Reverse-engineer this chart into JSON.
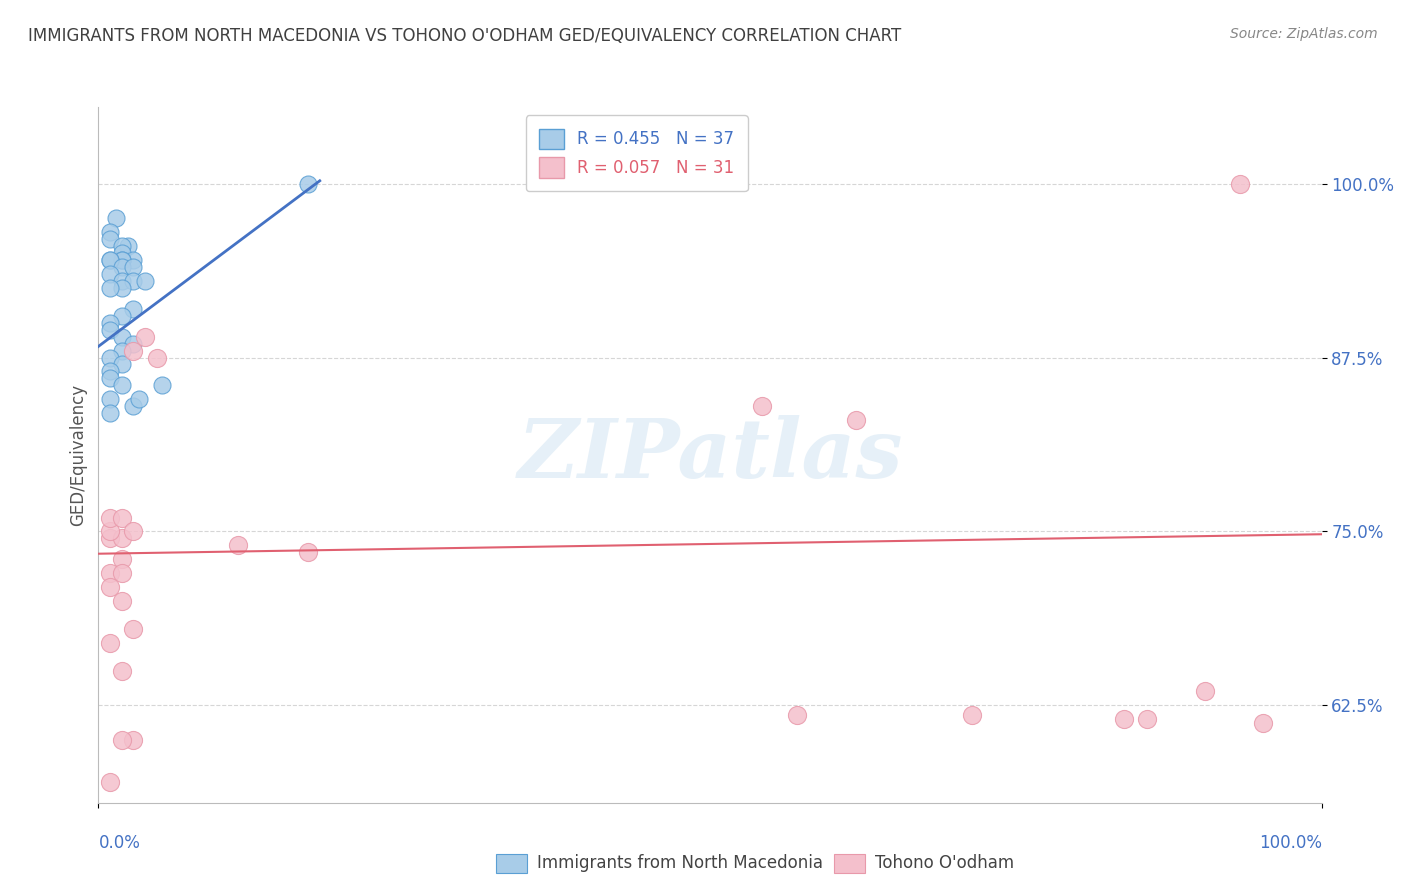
{
  "title": "IMMIGRANTS FROM NORTH MACEDONIA VS TOHONO O'ODHAM GED/EQUIVALENCY CORRELATION CHART",
  "source": "Source: ZipAtlas.com",
  "ylabel": "GED/Equivalency",
  "yticks": [
    0.625,
    0.75,
    0.875,
    1.0
  ],
  "ytick_labels": [
    "62.5%",
    "75.0%",
    "87.5%",
    "100.0%"
  ],
  "xlim": [
    0.0,
    0.105
  ],
  "ylim": [
    0.555,
    1.055
  ],
  "legend_r1": "R = 0.455",
  "legend_n1": "N = 37",
  "legend_r2": "R = 0.057",
  "legend_n2": "N = 31",
  "blue_scatter_x": [
    0.0015,
    0.0025,
    0.001,
    0.001,
    0.002,
    0.002,
    0.003,
    0.002,
    0.002,
    0.001,
    0.001,
    0.002,
    0.003,
    0.001,
    0.002,
    0.003,
    0.004,
    0.002,
    0.001,
    0.003,
    0.002,
    0.001,
    0.001,
    0.002,
    0.003,
    0.002,
    0.001,
    0.002,
    0.001,
    0.001,
    0.002,
    0.001,
    0.003,
    0.001,
    0.0055,
    0.0035,
    0.018
  ],
  "blue_scatter_y": [
    0.975,
    0.955,
    0.965,
    0.96,
    0.955,
    0.95,
    0.945,
    0.945,
    0.945,
    0.945,
    0.945,
    0.94,
    0.94,
    0.935,
    0.93,
    0.93,
    0.93,
    0.925,
    0.925,
    0.91,
    0.905,
    0.9,
    0.895,
    0.89,
    0.885,
    0.88,
    0.875,
    0.87,
    0.865,
    0.86,
    0.855,
    0.845,
    0.84,
    0.835,
    0.855,
    0.845,
    1.0
  ],
  "pink_scatter_x": [
    0.001,
    0.002,
    0.001,
    0.002,
    0.001,
    0.002,
    0.001,
    0.002,
    0.003,
    0.001,
    0.002,
    0.003,
    0.003,
    0.004,
    0.005,
    0.001,
    0.002,
    0.003,
    0.001,
    0.002,
    0.018,
    0.012,
    0.098,
    0.065,
    0.057,
    0.095,
    0.09,
    0.075,
    0.06,
    0.088,
    0.1
  ],
  "pink_scatter_y": [
    0.745,
    0.745,
    0.75,
    0.73,
    0.72,
    0.72,
    0.71,
    0.7,
    0.68,
    0.67,
    0.65,
    0.6,
    0.88,
    0.89,
    0.875,
    0.76,
    0.76,
    0.75,
    0.57,
    0.6,
    0.735,
    0.74,
    1.0,
    0.83,
    0.84,
    0.635,
    0.615,
    0.618,
    0.618,
    0.615,
    0.612
  ],
  "blue_line_x": [
    0.0,
    0.019
  ],
  "blue_line_y": [
    0.883,
    1.002
  ],
  "pink_line_x": [
    0.0,
    0.105
  ],
  "pink_line_y": [
    0.734,
    0.748
  ],
  "watermark": "ZIPatlas",
  "background_color": "#ffffff",
  "blue_color": "#a8cce8",
  "blue_edge_color": "#5a9fd4",
  "pink_color": "#f4c0cc",
  "pink_edge_color": "#e899aa",
  "blue_line_color": "#4472c4",
  "pink_line_color": "#e06070",
  "axis_label_color": "#4472c4",
  "title_color": "#404040",
  "grid_color": "#cccccc",
  "source_color": "#888888"
}
